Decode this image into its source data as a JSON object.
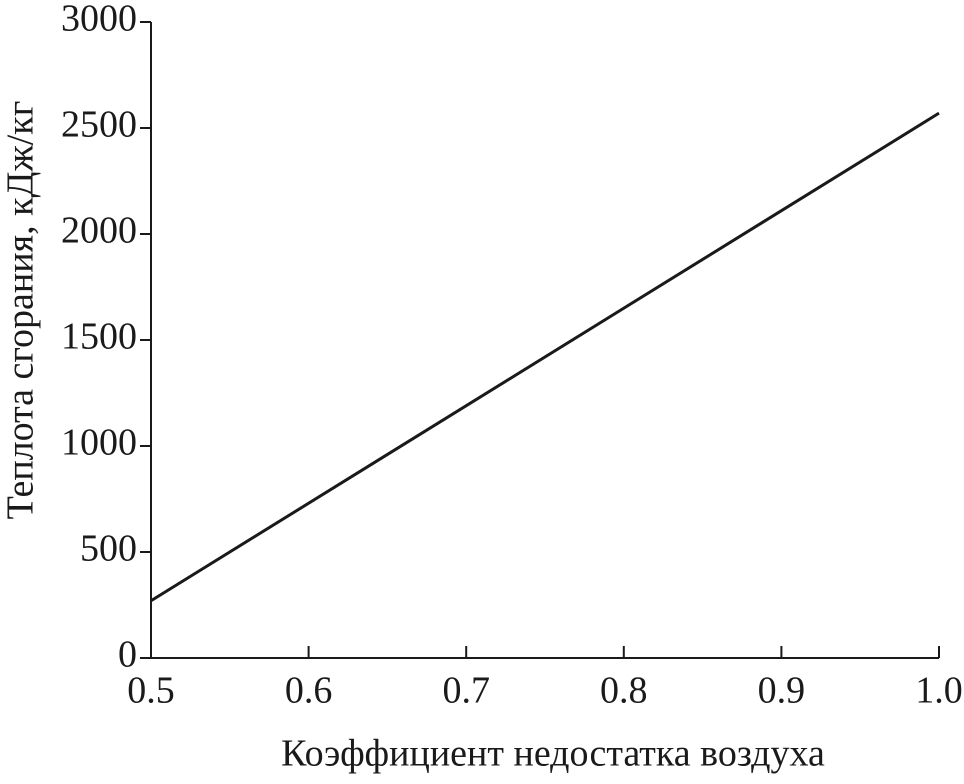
{
  "chart_data": {
    "type": "line",
    "x_label": "Коэффициент недостатка воздуха",
    "y_label": "Теплота сгорания, кДж/кг",
    "x": [
      0.5,
      1.0
    ],
    "series": [
      {
        "name": null,
        "color": "#1a1a1a",
        "values": [
          270,
          2570
        ]
      }
    ],
    "xlim": [
      0.5,
      1.0
    ],
    "xticks": [
      0.5,
      0.6,
      0.7,
      0.8,
      0.9,
      {
        "value": 1.0,
        "label": "1.0"
      }
    ],
    "ylim": [
      0,
      3000
    ],
    "yticks": [
      0,
      500,
      1000,
      1500,
      2000,
      2500,
      3000
    ],
    "grid": false
  }
}
